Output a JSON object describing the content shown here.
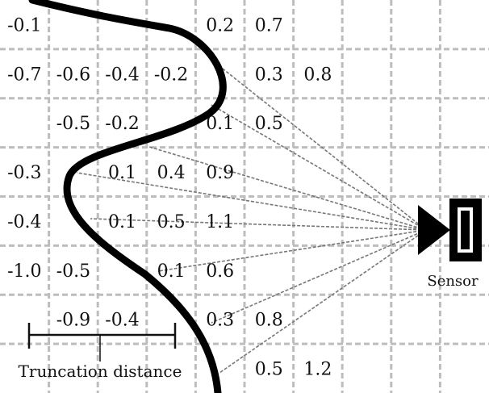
{
  "colors": {
    "grid": "#bdbdbd",
    "curve": "#000000",
    "rays": "#777777",
    "text": "#111111"
  },
  "labels": {
    "sensor": "Sensor",
    "truncation": "Truncation distance"
  },
  "grid": {
    "columns": 10,
    "rows": 8,
    "cells": [
      {
        "row": 0,
        "col": 0,
        "value": "-0.1"
      },
      {
        "row": 0,
        "col": 4,
        "value": "0.2"
      },
      {
        "row": 0,
        "col": 5,
        "value": "0.7"
      },
      {
        "row": 1,
        "col": 0,
        "value": "-0.7"
      },
      {
        "row": 1,
        "col": 1,
        "value": "-0.6"
      },
      {
        "row": 1,
        "col": 2,
        "value": "-0.4"
      },
      {
        "row": 1,
        "col": 3,
        "value": "-0.2"
      },
      {
        "row": 1,
        "col": 5,
        "value": "0.3"
      },
      {
        "row": 1,
        "col": 6,
        "value": "0.8"
      },
      {
        "row": 2,
        "col": 1,
        "value": "-0.5"
      },
      {
        "row": 2,
        "col": 2,
        "value": "-0.2"
      },
      {
        "row": 2,
        "col": 4,
        "value": "0.1"
      },
      {
        "row": 2,
        "col": 5,
        "value": "0.5"
      },
      {
        "row": 3,
        "col": 0,
        "value": "-0.3"
      },
      {
        "row": 3,
        "col": 2,
        "value": "0.1"
      },
      {
        "row": 3,
        "col": 3,
        "value": "0.4"
      },
      {
        "row": 3,
        "col": 4,
        "value": "0.9"
      },
      {
        "row": 4,
        "col": 0,
        "value": "-0.4"
      },
      {
        "row": 4,
        "col": 2,
        "value": "0.1"
      },
      {
        "row": 4,
        "col": 3,
        "value": "0.5"
      },
      {
        "row": 4,
        "col": 4,
        "value": "1.1"
      },
      {
        "row": 5,
        "col": 0,
        "value": "-1.0"
      },
      {
        "row": 5,
        "col": 1,
        "value": "-0.5"
      },
      {
        "row": 5,
        "col": 3,
        "value": "0.1"
      },
      {
        "row": 5,
        "col": 4,
        "value": "0.6"
      },
      {
        "row": 6,
        "col": 1,
        "value": "-0.9"
      },
      {
        "row": 6,
        "col": 2,
        "value": "-0.4"
      },
      {
        "row": 6,
        "col": 4,
        "value": "0.3"
      },
      {
        "row": 6,
        "col": 5,
        "value": "0.8"
      },
      {
        "row": 7,
        "col": 5,
        "value": "0.5"
      },
      {
        "row": 7,
        "col": 6,
        "value": "1.2"
      }
    ]
  }
}
